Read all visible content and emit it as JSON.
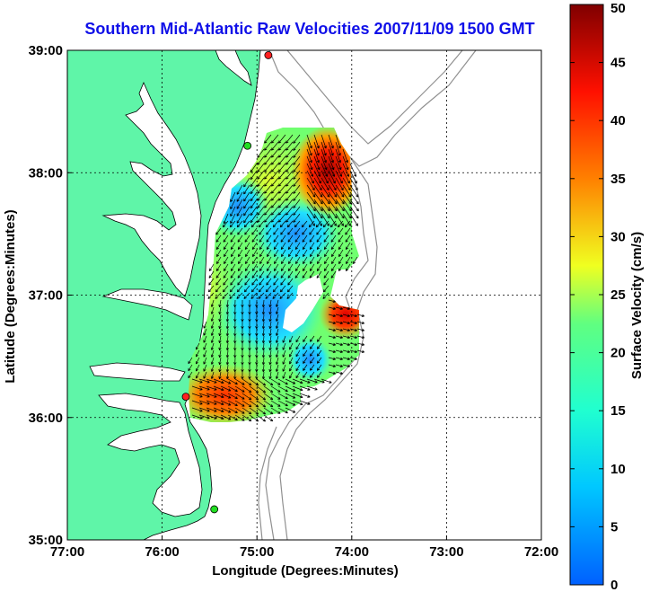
{
  "title": "Southern Mid-Atlantic Raw Velocities 2007/11/09 1500 GMT",
  "x_axis": {
    "label": "Longitude (Degrees:Minutes)",
    "ticks": [
      {
        "value": -77,
        "label": "77:00"
      },
      {
        "value": -76,
        "label": "76:00"
      },
      {
        "value": -75,
        "label": "75:00"
      },
      {
        "value": -74,
        "label": "74:00"
      },
      {
        "value": -73,
        "label": "73:00"
      },
      {
        "value": -72,
        "label": "72:00"
      }
    ],
    "range": [
      -77,
      -72
    ]
  },
  "y_axis": {
    "label": "Latitude (Degrees:Minutes)",
    "ticks": [
      {
        "value": 35,
        "label": "35:00"
      },
      {
        "value": 36,
        "label": "36:00"
      },
      {
        "value": 37,
        "label": "37:00"
      },
      {
        "value": 38,
        "label": "38:00"
      },
      {
        "value": 39,
        "label": "39:00"
      }
    ],
    "range": [
      35,
      39
    ]
  },
  "colorbar": {
    "label": "Surface Velocity (cm/s)",
    "range": [
      0,
      50
    ],
    "ticks": [
      {
        "value": 0,
        "label": "0"
      },
      {
        "value": 5,
        "label": "5"
      },
      {
        "value": 10,
        "label": "10"
      },
      {
        "value": 15,
        "label": "15"
      },
      {
        "value": 20,
        "label": "20"
      },
      {
        "value": 25,
        "label": "25"
      },
      {
        "value": 30,
        "label": "30"
      },
      {
        "value": 35,
        "label": "35"
      },
      {
        "value": 40,
        "label": "40"
      },
      {
        "value": 45,
        "label": "45"
      },
      {
        "value": 50,
        "label": "50"
      }
    ],
    "colors": [
      "#0060ff",
      "#00e8ff",
      "#20ffa0",
      "#f0ff20",
      "#ff8000",
      "#ff1000",
      "#800000"
    ]
  },
  "colors": {
    "land": "#5ff5a8",
    "water": "#ffffff",
    "bathymetry": "#909090",
    "arrow": "#000000",
    "station_green": "#22dd22",
    "station_red": "#ff2020"
  },
  "grid": true,
  "stations": [
    {
      "lon": -74.88,
      "lat": 38.96,
      "color": "red"
    },
    {
      "lon": -75.1,
      "lat": 38.22,
      "color": "green"
    },
    {
      "lon": -75.75,
      "lat": 36.17,
      "color": "red"
    },
    {
      "lon": -75.45,
      "lat": 35.25,
      "color": "green"
    }
  ]
}
